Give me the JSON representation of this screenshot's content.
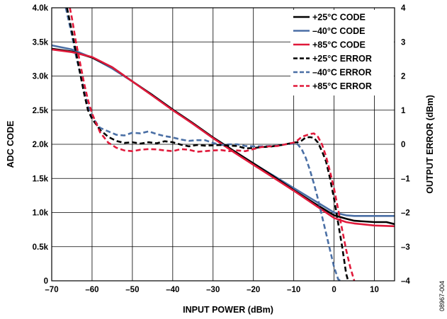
{
  "chart_data": {
    "type": "line",
    "xlabel": "INPUT POWER (dBm)",
    "ylabel": "ADC CODE",
    "y2label": "OUTPUT ERROR (dBm)",
    "figure_id": "08967-004",
    "xlim": [
      -70,
      15
    ],
    "ylim": [
      0,
      4000
    ],
    "y2lim": [
      -4,
      4
    ],
    "x_ticks": [
      -70,
      -60,
      -50,
      -40,
      -30,
      -20,
      -10,
      0,
      10
    ],
    "x_tick_labels": [
      "–70",
      "–60",
      "–50",
      "–40",
      "–30",
      "–20",
      "–10",
      "0",
      "10"
    ],
    "y_ticks": [
      0,
      500,
      1000,
      1500,
      2000,
      2500,
      3000,
      3500,
      4000
    ],
    "y_tick_labels": [
      "0",
      "0.5k",
      "1.0k",
      "1.5k",
      "2.0k",
      "2.5k",
      "3.0k",
      "3.5k",
      "4.0k"
    ],
    "y2_ticks": [
      -4,
      -3,
      -2,
      -1,
      0,
      1,
      2,
      3,
      4
    ],
    "y2_tick_labels": [
      "–4",
      "–3",
      "–2",
      "–1",
      "0",
      "1",
      "2",
      "3",
      "4"
    ],
    "grid": true,
    "legend_position": "top-right",
    "colors": {
      "black": "#000000",
      "blue": "#4a6fa5",
      "red": "#e0193a"
    },
    "series": [
      {
        "name": "+25°C CODE",
        "axis": "left",
        "color": "#000000",
        "dash": "solid",
        "x": [
          -70,
          -65,
          -60,
          -55,
          -50,
          -45,
          -40,
          -35,
          -30,
          -25,
          -20,
          -15,
          -10,
          -5,
          0,
          3,
          5,
          10,
          13,
          15
        ],
        "y": [
          3400,
          3360,
          3270,
          3130,
          2920,
          2720,
          2510,
          2310,
          2100,
          1910,
          1720,
          1530,
          1330,
          1140,
          960,
          910,
          880,
          860,
          860,
          830
        ]
      },
      {
        "name": "–40°C CODE",
        "axis": "left",
        "color": "#4a6fa5",
        "dash": "solid",
        "x": [
          -70,
          -65,
          -60,
          -55,
          -50,
          -45,
          -40,
          -35,
          -30,
          -25,
          -20,
          -15,
          -10,
          -5,
          0,
          3,
          5,
          10,
          15
        ],
        "y": [
          3450,
          3390,
          3270,
          3110,
          2920,
          2720,
          2510,
          2300,
          2090,
          1900,
          1720,
          1540,
          1360,
          1180,
          1000,
          960,
          950,
          950,
          950
        ]
      },
      {
        "name": "+85°C CODE",
        "axis": "left",
        "color": "#e0193a",
        "dash": "solid",
        "x": [
          -70,
          -65,
          -60,
          -55,
          -50,
          -45,
          -40,
          -35,
          -30,
          -25,
          -20,
          -15,
          -10,
          -5,
          0,
          3,
          5,
          10,
          15
        ],
        "y": [
          3390,
          3350,
          3280,
          3130,
          2920,
          2710,
          2500,
          2300,
          2090,
          1890,
          1700,
          1510,
          1320,
          1120,
          920,
          860,
          840,
          810,
          800
        ]
      },
      {
        "name": "+25°C ERROR",
        "axis": "right",
        "color": "#000000",
        "dash": "dashed",
        "x": [
          -66.2,
          -65,
          -64,
          -63,
          -62,
          -61,
          -60,
          -58,
          -56,
          -54,
          -52,
          -50,
          -48,
          -46,
          -44,
          -42,
          -40,
          -38,
          -36,
          -34,
          -32,
          -30,
          -28,
          -26,
          -24,
          -22,
          -20,
          -18,
          -16,
          -14,
          -12,
          -10,
          -9,
          -8,
          -7,
          -6,
          -5,
          -4,
          -3,
          -2,
          -1,
          0,
          1,
          2,
          3,
          3.5
        ],
        "y": [
          4.0,
          3.3,
          2.7,
          2.1,
          1.5,
          1.0,
          0.75,
          0.42,
          0.22,
          0.1,
          0.04,
          0.06,
          0.02,
          0.06,
          0.03,
          0.09,
          0.06,
          -0.01,
          -0.06,
          -0.02,
          -0.04,
          -0.03,
          -0.02,
          -0.04,
          -0.05,
          -0.12,
          -0.11,
          -0.08,
          -0.07,
          -0.04,
          0.0,
          0.05,
          0.06,
          0.11,
          0.2,
          0.21,
          0.19,
          0.05,
          -0.2,
          -0.5,
          -1.0,
          -1.6,
          -2.3,
          -3.0,
          -3.8,
          -4.0
        ]
      },
      {
        "name": "–40°C ERROR",
        "axis": "right",
        "color": "#4a6fa5",
        "dash": "dashed",
        "x": [
          -66.5,
          -65,
          -64,
          -63,
          -62,
          -61,
          -60,
          -58,
          -56,
          -54,
          -52,
          -50,
          -48,
          -46,
          -44,
          -42,
          -40,
          -38,
          -36,
          -34,
          -32,
          -30,
          -28,
          -26,
          -24,
          -22,
          -20,
          -18,
          -16,
          -14,
          -12,
          -10,
          -9,
          -8,
          -7,
          -6,
          -5,
          -4,
          -3,
          -2,
          -1,
          0,
          1,
          1.5
        ],
        "y": [
          4.0,
          3.2,
          2.6,
          2.1,
          1.6,
          1.1,
          0.8,
          0.48,
          0.38,
          0.28,
          0.26,
          0.34,
          0.32,
          0.38,
          0.3,
          0.24,
          0.2,
          0.14,
          0.1,
          0.12,
          0.12,
          0.04,
          -0.02,
          0.0,
          0.0,
          -0.05,
          -0.06,
          -0.06,
          -0.05,
          -0.04,
          0.0,
          0.02,
          0.0,
          -0.15,
          -0.4,
          -0.75,
          -1.15,
          -1.6,
          -2.1,
          -2.6,
          -3.1,
          -3.6,
          -3.95,
          -4.0
        ]
      },
      {
        "name": "+85°C ERROR",
        "axis": "right",
        "color": "#e0193a",
        "dash": "dashed",
        "x": [
          -65.5,
          -65,
          -64,
          -63,
          -62,
          -61,
          -60,
          -58,
          -56,
          -54,
          -52,
          -50,
          -48,
          -46,
          -44,
          -42,
          -40,
          -38,
          -36,
          -34,
          -32,
          -30,
          -28,
          -26,
          -24,
          -22,
          -20,
          -18,
          -16,
          -14,
          -12,
          -10,
          -9,
          -8,
          -7,
          -6,
          -5,
          -4,
          -3,
          -2,
          -1,
          0,
          1,
          2,
          3,
          4,
          5
        ],
        "y": [
          4.0,
          3.7,
          3.0,
          2.4,
          1.8,
          1.3,
          0.9,
          0.35,
          0.05,
          -0.1,
          -0.18,
          -0.2,
          -0.16,
          -0.14,
          -0.15,
          -0.18,
          -0.2,
          -0.14,
          -0.16,
          -0.22,
          -0.2,
          -0.18,
          -0.17,
          -0.2,
          -0.18,
          -0.2,
          -0.14,
          -0.08,
          -0.06,
          -0.05,
          0.0,
          0.05,
          0.12,
          0.22,
          0.26,
          0.3,
          0.32,
          0.22,
          0.0,
          -0.35,
          -0.8,
          -1.3,
          -1.9,
          -2.5,
          -3.1,
          -3.6,
          -4.0
        ]
      }
    ]
  }
}
